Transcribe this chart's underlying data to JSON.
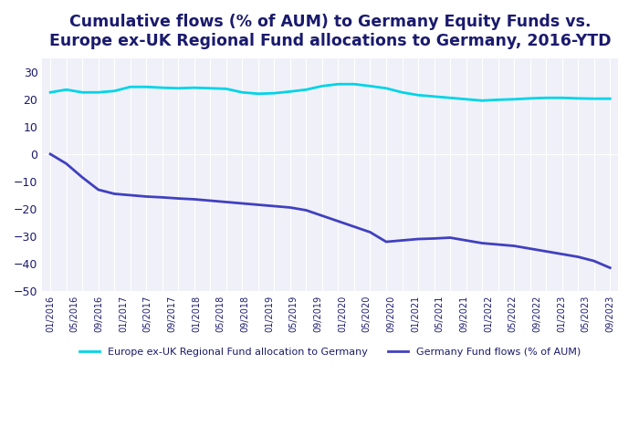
{
  "title": "Cumulative flows (% of AUM) to Germany Equity Funds vs.\nEurope ex-UK Regional Fund allocations to Germany, 2016-YTD",
  "title_color": "#1a1a6e",
  "title_fontsize": 12.5,
  "title_fontweight": "bold",
  "background_color": "#ffffff",
  "plot_bg_color": "#f0f0f8",
  "ylim": [
    -50,
    35
  ],
  "yticks": [
    -50,
    -40,
    -30,
    -20,
    -10,
    0,
    10,
    20,
    30
  ],
  "ylabel_color": "#1a1a6e",
  "tick_color": "#1a1a6e",
  "grid_color": "#ffffff",
  "cyan_line_color": "#00d4e8",
  "blue_line_color": "#4040c0",
  "legend_label_cyan": "Europe ex-UK Regional Fund allocation to Germany",
  "legend_label_blue": "Germany Fund flows (% of AUM)",
  "x_tick_labels": [
    "01/2016",
    "05/2016",
    "09/2016",
    "01/2017",
    "05/2017",
    "09/2017",
    "01/2018",
    "05/2018",
    "09/2018",
    "01/2019",
    "05/2019",
    "09/2019",
    "01/2020",
    "05/2020",
    "09/2020",
    "01/2021",
    "05/2021",
    "09/2021",
    "01/2022",
    "05/2022",
    "09/2022",
    "01/2023",
    "05/2023",
    "09/2023"
  ],
  "cyan_values": [
    22.5,
    23.5,
    22.5,
    22.5,
    23.0,
    24.5,
    24.5,
    24.2,
    24.0,
    24.2,
    24.0,
    23.8,
    22.5,
    22.0,
    22.2,
    22.8,
    23.5,
    24.8,
    25.5,
    25.5,
    24.8,
    24.0,
    22.5,
    21.5,
    21.0,
    20.5,
    20.0,
    19.5,
    19.8,
    20.0,
    20.3,
    20.5,
    20.5,
    20.3,
    20.2,
    20.2
  ],
  "blue_values": [
    0.0,
    -3.5,
    -8.5,
    -13.0,
    -14.5,
    -15.0,
    -15.5,
    -15.8,
    -16.2,
    -16.5,
    -17.0,
    -17.5,
    -18.0,
    -18.5,
    -19.0,
    -19.5,
    -20.5,
    -22.5,
    -24.5,
    -26.5,
    -28.5,
    -32.0,
    -31.5,
    -31.0,
    -30.8,
    -30.5,
    -31.5,
    -32.5,
    -33.0,
    -33.5,
    -34.5,
    -35.5,
    -36.5,
    -37.5,
    -39.0,
    -41.5
  ],
  "n_points": 36,
  "vgrid_every": 1
}
